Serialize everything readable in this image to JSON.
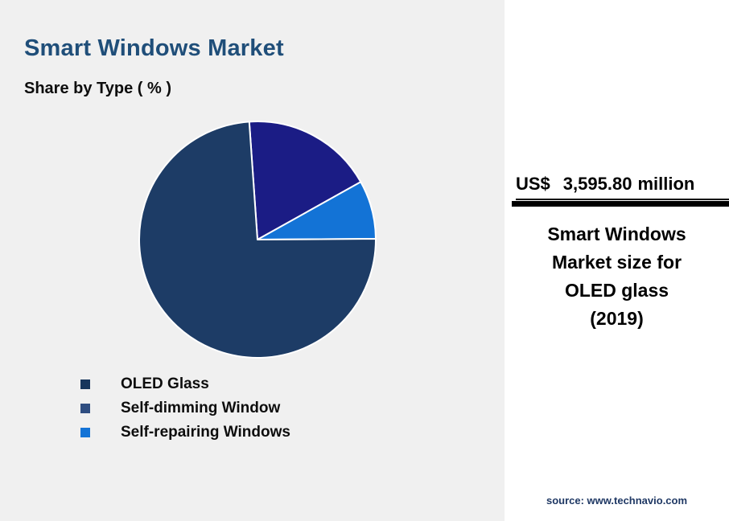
{
  "header": {
    "title": "Smart Windows Market",
    "subtitle": "Share by Type ( % )"
  },
  "chart_data": {
    "type": "pie",
    "title": "Smart Windows Market",
    "subtitle": "Share by Type ( % )",
    "unit": "%",
    "series": [
      {
        "label": "OLED Glass",
        "value": 74,
        "color": "#1d3c66",
        "legend_color": "#17365c"
      },
      {
        "label": "Self-dimming Window",
        "value": 18,
        "color": "#1b1c85",
        "legend_color": "#2e4d80"
      },
      {
        "label": "Self-repairing Windows",
        "value": 8,
        "color": "#1373d6",
        "legend_color": "#1373d6"
      }
    ],
    "draw_order": [
      1,
      2,
      0
    ],
    "start_angle_deg": -4,
    "slice_border_color": "#ffffff",
    "legend_position": "bottom-left"
  },
  "right_panel": {
    "value_currency": "US$",
    "value_amount": "3,595.80",
    "value_unit": "million",
    "caption_lines": [
      "Smart Windows",
      "Market size for",
      "OLED glass",
      "(2019)"
    ],
    "source": "source: www.technavio.com"
  },
  "colors": {
    "title_text": "#1f4e79",
    "left_background": "#f0f0f0",
    "panel_background": "#ffffff",
    "rule": "#000000",
    "source_text": "#1f3864"
  }
}
